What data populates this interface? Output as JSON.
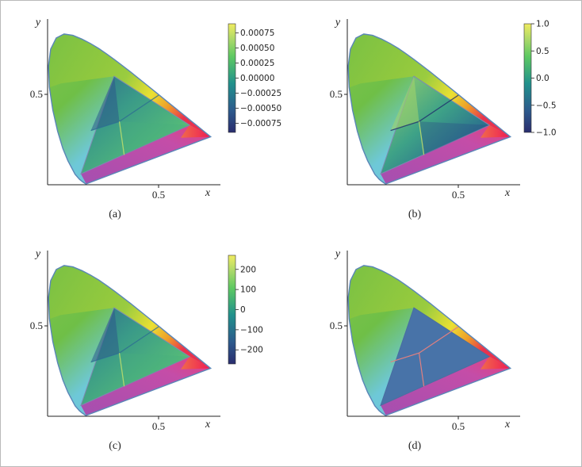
{
  "chart_data": [
    {
      "type": "heatmap",
      "caption": "(a)",
      "xlabel": "x",
      "ylabel": "y",
      "x_ticks": [
        "0.5"
      ],
      "y_ticks": [
        "0.5"
      ],
      "background": "CIE 1931 chromaticity diagram (spectral locus)",
      "overlay": "gamut triangle colored by value",
      "colormap": "viridis",
      "colorbar": {
        "min": -0.0009,
        "max": 0.0009,
        "ticks": [
          0.00075,
          0.0005,
          0.00025,
          0.0,
          -0.00025,
          -0.0005,
          -0.00075
        ],
        "tick_labels": [
          "0.00075",
          "0.00050",
          "0.00025",
          "0.00000",
          "−0.00025",
          "−0.00050",
          "−0.00075"
        ]
      },
      "grid": false
    },
    {
      "type": "heatmap",
      "caption": "(b)",
      "xlabel": "x",
      "ylabel": "y",
      "x_ticks": [
        "0.5"
      ],
      "y_ticks": [
        "0.5"
      ],
      "background": "CIE 1931 chromaticity diagram (spectral locus)",
      "overlay": "gamut triangle colored by value",
      "colormap": "viridis",
      "colorbar": {
        "min": -1.0,
        "max": 1.0,
        "ticks": [
          1.0,
          0.5,
          0.0,
          -0.5,
          -1.0
        ],
        "tick_labels": [
          "1.0",
          "0.5",
          "0.0",
          "−0.5",
          "−1.0"
        ]
      },
      "grid": false
    },
    {
      "type": "heatmap",
      "caption": "(c)",
      "xlabel": "x",
      "ylabel": "y",
      "x_ticks": [
        "0.5"
      ],
      "y_ticks": [
        "0.5"
      ],
      "background": "CIE 1931 chromaticity diagram (spectral locus)",
      "overlay": "gamut triangle colored by value",
      "colormap": "viridis",
      "colorbar": {
        "min": -270,
        "max": 270,
        "ticks": [
          200,
          100,
          0,
          -100,
          -200
        ],
        "tick_labels": [
          "200",
          "100",
          "0",
          "−100",
          "−200"
        ]
      },
      "grid": false
    },
    {
      "type": "heatmap",
      "caption": "(d)",
      "xlabel": "x",
      "ylabel": "y",
      "x_ticks": [
        "0.5"
      ],
      "y_ticks": [
        "0.5"
      ],
      "background": "CIE 1931 chromaticity diagram (spectral locus)",
      "overlay": "gamut triangle partitioned into three regions",
      "overlay_color": "#4873a8",
      "boundary_color": "#e08080",
      "colorbar": null,
      "grid": false
    }
  ]
}
